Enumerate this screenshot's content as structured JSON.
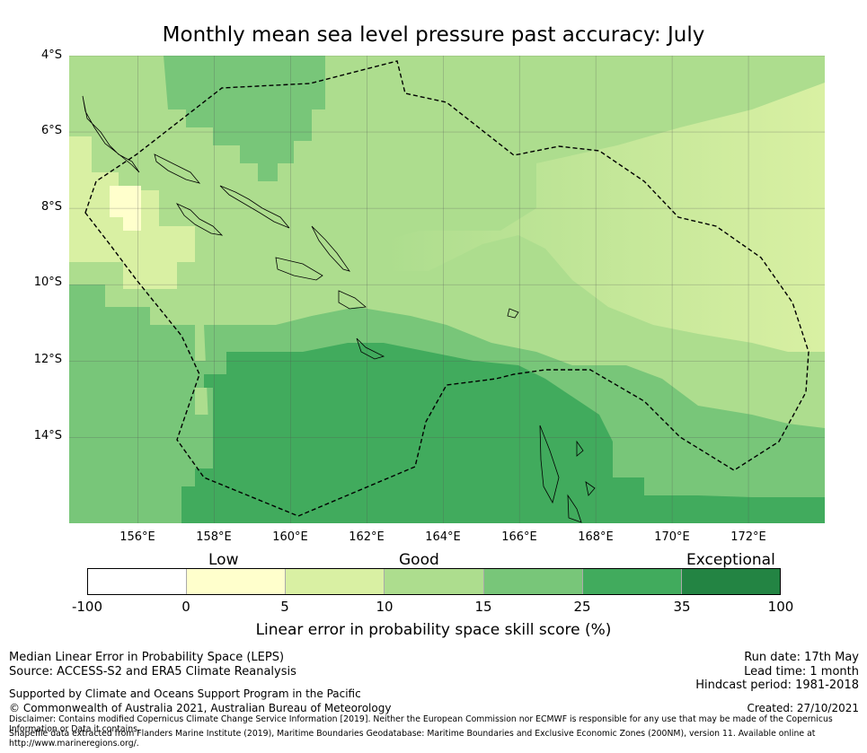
{
  "title": "Monthly mean sea level pressure past accuracy: July",
  "map": {
    "lat_labels": [
      "4°S",
      "6°S",
      "8°S",
      "10°S",
      "12°S",
      "14°S"
    ],
    "lon_labels": [
      "156°E",
      "158°E",
      "160°E",
      "162°E",
      "164°E",
      "166°E",
      "168°E",
      "170°E",
      "172°E"
    ],
    "lat_range": [
      -16.25,
      -4.0
    ],
    "lon_range": [
      154.2,
      174.0
    ]
  },
  "colorbar": {
    "categories": [
      "Low",
      "Good",
      "Exceptional"
    ],
    "ticks": [
      "-100",
      "0",
      "5",
      "10",
      "15",
      "25",
      "35",
      "100"
    ],
    "colors": [
      "#ffffff",
      "#ffffcc",
      "#d9f0a3",
      "#addd8e",
      "#78c679",
      "#41ab5d",
      "#238443"
    ],
    "label": "Linear error in probability space skill score (%)"
  },
  "footer": {
    "method": "Median Linear Error in Probability Space (LEPS)",
    "source": "Source: ACCESS-S2 and ERA5 Climate Reanalysis",
    "support": "Supported by Climate and Oceans Support Program in the Pacific",
    "copyright": "© Commonwealth of Australia 2021, Australian Bureau of Meteorology",
    "disclaimer": "Disclaimer: Contains modified Copernicus Climate Change Service Information [2019]. Neither the European Commission nor ECMWF is responsible for any use that may be made of the Copernicus Information or Data it contains.",
    "shapefile": "Shapefile data extracted from Flanders Marine Institute (2019), Maritime Boundaries Geodatabase: Maritime Boundaries and Exclusive Economic Zones (200NM), version 11. Available online at http://www.marineregions.org/.",
    "run_date": "Run date: 17th May",
    "lead_time": "Lead time: 1 month",
    "hindcast": "Hindcast period: 1981-2018",
    "created": "Created: 27/10/2021"
  }
}
